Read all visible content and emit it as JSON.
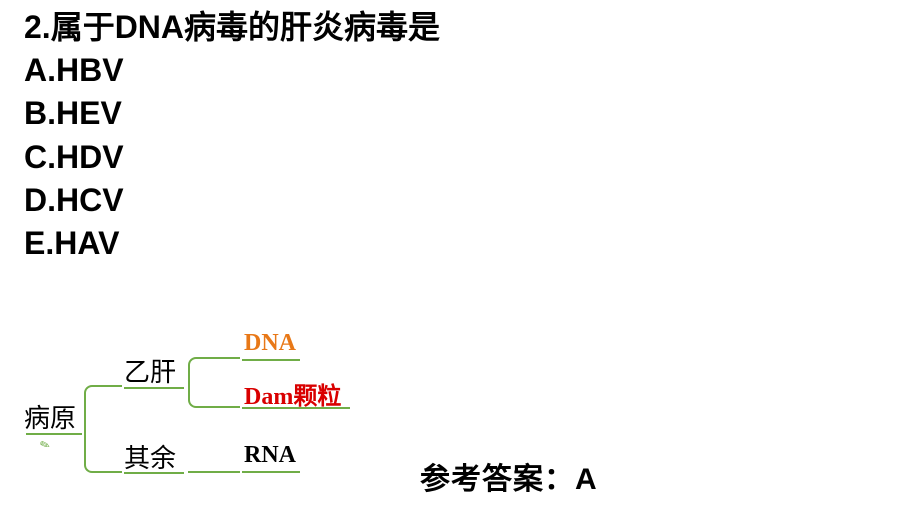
{
  "question": {
    "title": "2.属于DNA病毒的肝炎病毒是",
    "options": [
      "A.HBV",
      "B.HEV",
      "C.HDV",
      "D.HCV",
      "E.HAV"
    ]
  },
  "diagram": {
    "root": "病原",
    "branches": [
      {
        "label": "乙肝",
        "leaves": [
          {
            "text": "DNA",
            "color": "#e87817",
            "kind": "latin"
          },
          {
            "text_latin": "Dam",
            "text_cjk": "颗粒",
            "color": "#d90000",
            "kind": "mixed"
          }
        ]
      },
      {
        "label": "其余",
        "leaves": [
          {
            "text": "RNA",
            "color": "#000000",
            "kind": "latin"
          }
        ]
      }
    ],
    "line_color": "#70ad47"
  },
  "answer": {
    "label": "参考答案：A"
  }
}
